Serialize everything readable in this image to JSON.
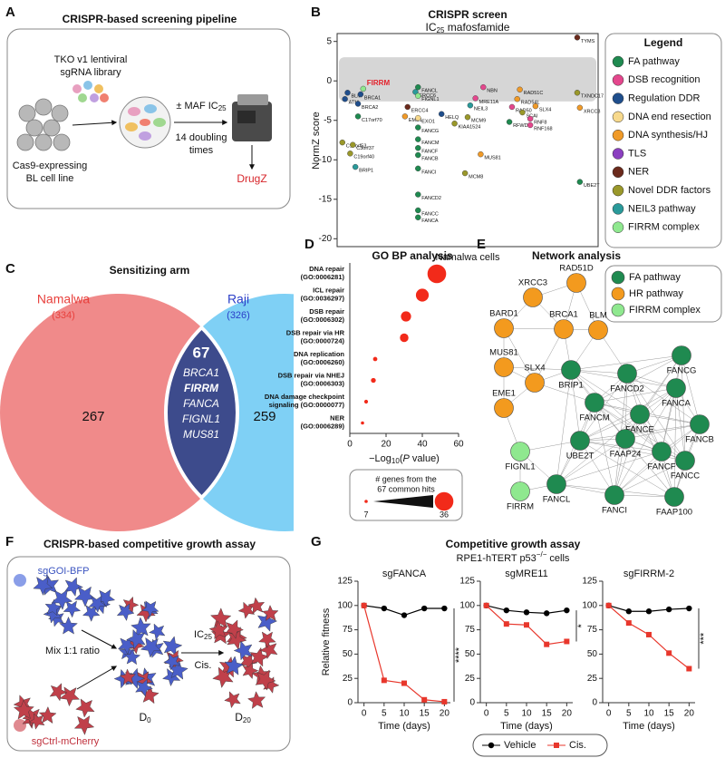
{
  "panel_a": {
    "letter": "A",
    "title": "CRISPR-based screening pipeline",
    "library": [
      "TKO v1 lentiviral",
      "sgRNA library"
    ],
    "cells": [
      "Cas9-expressing",
      "BL cell line"
    ],
    "treatment": [
      "± MAF IC",
      "25"
    ],
    "duration": [
      "14 doubling",
      "times"
    ],
    "output": "DrugZ"
  },
  "panel_c": {
    "letter": "C",
    "title": "Sensitizing arm",
    "left": {
      "name": "Namalwa",
      "count": "(334)",
      "unique": 267
    },
    "right": {
      "name": "Raji",
      "count": "(326)",
      "unique": 259
    },
    "overlap": {
      "count": 67,
      "genes": [
        "BRCA1",
        "FIRRM",
        "FANCA",
        "FIGNL1",
        "MUS81"
      ]
    }
  },
  "panel_e": {
    "letter": "E",
    "title": "Network analysis",
    "groups": [
      {
        "name": "FA pathway",
        "color": "#1f8a50"
      },
      {
        "name": "HR pathway",
        "color": "#f39a1e"
      },
      {
        "name": "FIRRM complex",
        "color": "#8fe88f"
      }
    ],
    "nodes": [
      {
        "label": "RAD51D",
        "group": 1
      },
      {
        "label": "XRCC3",
        "group": 1
      },
      {
        "label": "BARD1",
        "group": 1
      },
      {
        "label": "BRCA1",
        "group": 1
      },
      {
        "label": "BLM",
        "group": 1
      },
      {
        "label": "MUS81",
        "group": 1
      },
      {
        "label": "SLX4",
        "group": 1
      },
      {
        "label": "EME1",
        "group": 1
      },
      {
        "label": "BRIP1",
        "group": 0
      },
      {
        "label": "FANCD2",
        "group": 0
      },
      {
        "label": "FANCG",
        "group": 0
      },
      {
        "label": "FANCM",
        "group": 0
      },
      {
        "label": "FANCE",
        "group": 0
      },
      {
        "label": "FANCA",
        "group": 0
      },
      {
        "label": "FANCB",
        "group": 0
      },
      {
        "label": "UBE2T",
        "group": 0
      },
      {
        "label": "FAAP24",
        "group": 0
      },
      {
        "label": "FANCF",
        "group": 0
      },
      {
        "label": "FANCC",
        "group": 0
      },
      {
        "label": "FANCL",
        "group": 0
      },
      {
        "label": "FANCI",
        "group": 0
      },
      {
        "label": "FAAP100",
        "group": 0
      },
      {
        "label": "FIGNL1",
        "group": 2
      },
      {
        "label": "FIRRM",
        "group": 2
      }
    ]
  },
  "panel_f": {
    "letter": "F",
    "title": "CRISPR-based competitive growth assay",
    "gene_label": "sgGOI-BFP",
    "control_label": "sgCtrl-mCherry",
    "mix": "Mix 1:1 ratio",
    "treatment": [
      "IC",
      "25",
      "Cis."
    ],
    "day_start": [
      "D",
      "0"
    ],
    "day_end": [
      "D",
      "20"
    ]
  },
  "panel_g": {
    "letter": "G",
    "title": "Competitive growth assay",
    "subtitle": [
      "RPE1-hTERT p53",
      "−/−",
      " cells"
    ],
    "ylabel": "Relative fitness",
    "xlabel": "Time (days)"
  },
  "chart_data": [
    {
      "type": "scatter",
      "letter": "B",
      "title": "CRISPR screen",
      "subtitle": [
        "IC",
        "25",
        " mafosfamide"
      ],
      "xlabel": "Namalwa cells",
      "ylabel": "NormZ score",
      "xlim": [
        0,
        100
      ],
      "ylim": [
        -21,
        6
      ],
      "yticks": [
        -20,
        -15,
        -10,
        -5,
        0,
        5
      ],
      "legend_title": "Legend",
      "groups": [
        {
          "name": "FA pathway",
          "color": "#1f8a50"
        },
        {
          "name": "DSB recognition",
          "color": "#e4478d"
        },
        {
          "name": "Regulation DDR",
          "color": "#1f4e8c"
        },
        {
          "name": "DNA end resection",
          "color": "#f7d98c"
        },
        {
          "name": "DNA synthesis/HJ",
          "color": "#f09a28"
        },
        {
          "name": "TLS",
          "color": "#8b3fc0"
        },
        {
          "name": "NER",
          "color": "#6b2a1c"
        },
        {
          "name": "Novel DDR factors",
          "color": "#9a982a"
        },
        {
          "name": "NEIL3 pathway",
          "color": "#2a9a9a"
        },
        {
          "name": "FIRRM complex",
          "color": "#8fe88f"
        }
      ],
      "points": [
        {
          "label": "TYMS",
          "x": 92,
          "value": 5.5,
          "group": 6
        },
        {
          "label": "FIRRM",
          "x": 10,
          "value": -1.0,
          "group": 9,
          "label_color": "#e3202a"
        },
        {
          "label": "BLM",
          "x": 4,
          "value": -1.5,
          "group": 2
        },
        {
          "label": "ATM",
          "x": 3,
          "value": -2.3,
          "group": 2
        },
        {
          "label": "BRCA1",
          "x": 9,
          "value": -1.7,
          "group": 2
        },
        {
          "label": "BRCA2",
          "x": 8,
          "value": -2.9,
          "group": 2
        },
        {
          "label": "C17orf70",
          "x": 8,
          "value": -4.5,
          "group": 0
        },
        {
          "label": "C17orf53",
          "x": 2,
          "value": -7.8,
          "group": 7
        },
        {
          "label": "C3orf37",
          "x": 6,
          "value": -8.1,
          "group": 7
        },
        {
          "label": "C19orf40",
          "x": 5,
          "value": -9.2,
          "group": 7
        },
        {
          "label": "BRIP1",
          "x": 7,
          "value": -10.9,
          "group": 8
        },
        {
          "label": "ERCC6",
          "x": 30,
          "value": -1.4,
          "group": 8
        },
        {
          "label": "ERCC4",
          "x": 27,
          "value": -3.3,
          "group": 6
        },
        {
          "label": "EME1",
          "x": 26,
          "value": -4.5,
          "group": 4
        },
        {
          "label": "EXO1",
          "x": 31,
          "value": -4.7,
          "group": 3
        },
        {
          "label": "FANCL",
          "x": 31,
          "value": -0.8,
          "group": 0
        },
        {
          "label": "FIGNL1",
          "x": 31,
          "value": -1.9,
          "group": 9
        },
        {
          "label": "HELQ",
          "x": 40,
          "value": -4.2,
          "group": 2
        },
        {
          "label": "FANCG",
          "x": 31,
          "value": -5.9,
          "group": 0
        },
        {
          "label": "FANCM",
          "x": 31,
          "value": -7.4,
          "group": 0
        },
        {
          "label": "FANCF",
          "x": 31,
          "value": -8.5,
          "group": 0
        },
        {
          "label": "FANCB",
          "x": 31,
          "value": -9.4,
          "group": 0
        },
        {
          "label": "FANCI",
          "x": 31,
          "value": -11.1,
          "group": 0
        },
        {
          "label": "FANCD2",
          "x": 31,
          "value": -14.4,
          "group": 0
        },
        {
          "label": "FANCC",
          "x": 31,
          "value": -16.4,
          "group": 0
        },
        {
          "label": "FANCA",
          "x": 31,
          "value": -17.3,
          "group": 0
        },
        {
          "label": "KIAA1524",
          "x": 45,
          "value": -5.4,
          "group": 7
        },
        {
          "label": "MCM9",
          "x": 50,
          "value": -4.6,
          "group": 7
        },
        {
          "label": "MCM8",
          "x": 49,
          "value": -11.7,
          "group": 7
        },
        {
          "label": "MUS81",
          "x": 55,
          "value": -9.3,
          "group": 4
        },
        {
          "label": "NBN",
          "x": 56,
          "value": -0.8,
          "group": 1
        },
        {
          "label": "MRE11A",
          "x": 53,
          "value": -2.2,
          "group": 1
        },
        {
          "label": "NEIL3",
          "x": 51,
          "value": -3.1,
          "group": 8
        },
        {
          "label": "RAD51C",
          "x": 70,
          "value": -1.1,
          "group": 4
        },
        {
          "label": "RAD54L",
          "x": 69,
          "value": -2.3,
          "group": 4
        },
        {
          "label": "RAD50",
          "x": 67,
          "value": -3.3,
          "group": 1
        },
        {
          "label": "SCAI",
          "x": 71,
          "value": -4.0,
          "group": 7
        },
        {
          "label": "RFWD3",
          "x": 66,
          "value": -5.2,
          "group": 0
        },
        {
          "label": "SLX4",
          "x": 76,
          "value": -3.2,
          "group": 4
        },
        {
          "label": "RNF8",
          "x": 74,
          "value": -4.8,
          "group": 1
        },
        {
          "label": "RNF168",
          "x": 74,
          "value": -5.6,
          "group": 1
        },
        {
          "label": "TXNDC17",
          "x": 92,
          "value": -1.5,
          "group": 7
        },
        {
          "label": "XRCC3",
          "x": 93,
          "value": -3.4,
          "group": 4
        },
        {
          "label": "UBE2T",
          "x": 93,
          "value": -12.8,
          "group": 0
        }
      ]
    },
    {
      "type": "dot",
      "letter": "D",
      "title": "GO BP analysis",
      "color": "#f22a1a",
      "categories": [
        [
          "DNA repair",
          "(GO:0006281)"
        ],
        [
          "ICL repair",
          "(GO:0036297)"
        ],
        [
          "DSB repair",
          "(GO:0006302)"
        ],
        [
          "DSB repair via HR",
          "(GO:0000724)"
        ],
        [
          "DNA replication",
          "(GO:0006260)"
        ],
        [
          "DSB repair via NHEJ",
          "(GO:0006303)"
        ],
        [
          "DNA damage checkpoint",
          "signaling (GO:0000077)"
        ],
        [
          "NER",
          "(GO:0006289)"
        ]
      ],
      "values": [
        48,
        40,
        31,
        30,
        14,
        13,
        9,
        7
      ],
      "sizes": [
        36,
        25,
        20,
        17,
        9,
        10,
        8,
        7
      ],
      "xlim": [
        0,
        60
      ],
      "xticks": [
        0,
        20,
        40,
        60
      ],
      "xlabel": [
        "−Log",
        "10",
        "(",
        "P",
        " value)"
      ],
      "size_legend": {
        "title": [
          "# genes from the",
          "67 common hits"
        ],
        "values": [
          7,
          36
        ]
      }
    },
    {
      "type": "line",
      "title": "sgFANCA",
      "annotation": "****",
      "x": [
        0,
        5,
        10,
        15,
        20
      ],
      "xlim": [
        -1.5,
        21.5
      ],
      "xticks": [
        0,
        5,
        10,
        15,
        20
      ],
      "ylim": [
        0,
        125
      ],
      "yticks": [
        0,
        25,
        50,
        75,
        100,
        125
      ],
      "series": [
        {
          "name": "Vehicle",
          "color": "#000000",
          "marker": "circle",
          "values": [
            100,
            97,
            90,
            97,
            97
          ]
        },
        {
          "name": "Cis.",
          "color": "#e8372c",
          "marker": "square",
          "values": [
            100,
            23,
            20,
            3,
            1
          ]
        }
      ]
    },
    {
      "type": "line",
      "title": "sgMRE11",
      "annotation": "*",
      "x": [
        0,
        5,
        10,
        15,
        20
      ],
      "xlim": [
        -1.5,
        21.5
      ],
      "xticks": [
        0,
        5,
        10,
        15,
        20
      ],
      "ylim": [
        0,
        125
      ],
      "yticks": [
        0,
        25,
        50,
        75,
        100,
        125
      ],
      "series": [
        {
          "name": "Vehicle",
          "color": "#000000",
          "marker": "circle",
          "values": [
            100,
            95,
            93,
            92,
            95
          ]
        },
        {
          "name": "Cis.",
          "color": "#e8372c",
          "marker": "square",
          "values": [
            100,
            81,
            80,
            60,
            63
          ]
        }
      ]
    },
    {
      "type": "line",
      "title": "sgFIRRM-2",
      "annotation": "***",
      "x": [
        0,
        5,
        10,
        15,
        20
      ],
      "xlim": [
        -1.5,
        21.5
      ],
      "xticks": [
        0,
        5,
        10,
        15,
        20
      ],
      "ylim": [
        0,
        125
      ],
      "yticks": [
        0,
        25,
        50,
        75,
        100,
        125
      ],
      "series": [
        {
          "name": "Vehicle",
          "color": "#000000",
          "marker": "circle",
          "values": [
            100,
            94,
            94,
            96,
            97
          ]
        },
        {
          "name": "Cis.",
          "color": "#e8372c",
          "marker": "square",
          "values": [
            100,
            82,
            70,
            51,
            35
          ]
        }
      ]
    }
  ]
}
